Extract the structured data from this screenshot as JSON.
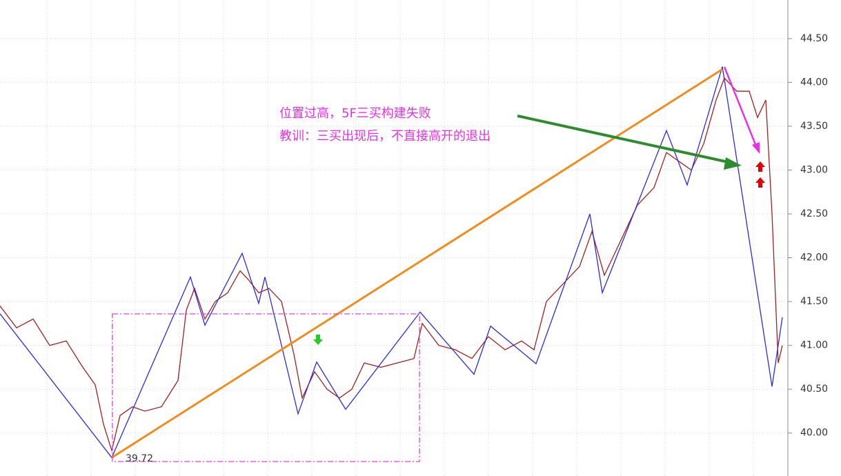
{
  "chart_data": {
    "type": "line",
    "annotations": [
      "位置过高，5F三买构建失败",
      "教训：三买出现后，不直接高开的退出"
    ],
    "low_value": 39.72,
    "xlim": [
      0,
      380
    ],
    "ylim": [
      39.51,
      44.94
    ],
    "yticks": [
      {
        "value": 40,
        "label": "40.00"
      },
      {
        "value": 40.5,
        "label": "40.50"
      },
      {
        "value": 41,
        "label": "41.00"
      },
      {
        "value": 41.5,
        "label": "41.50"
      },
      {
        "value": 42,
        "label": "42.00"
      },
      {
        "value": 42.5,
        "label": "42.50"
      },
      {
        "value": 43,
        "label": "43.00"
      },
      {
        "value": 43.5,
        "label": "43.50"
      },
      {
        "value": 44,
        "label": "44.00"
      },
      {
        "value": 44.5,
        "label": "44.50"
      }
    ],
    "grid": true,
    "series": [
      {
        "color": "#a02020",
        "x": [
          0,
          8,
          16,
          24,
          32,
          40,
          46,
          50,
          54,
          58,
          64,
          70,
          78,
          86,
          90,
          94,
          99,
          104,
          110,
          116,
          120,
          125,
          130,
          136,
          142,
          146,
          152,
          158,
          164,
          170,
          176,
          184,
          192,
          200,
          204,
          212,
          220,
          228,
          236,
          244,
          252,
          258,
          264,
          272,
          280,
          286,
          292,
          300,
          308,
          316,
          322,
          328,
          334,
          340,
          346,
          350,
          356,
          362,
          366,
          370,
          373,
          376,
          378
        ],
        "values": [
          41.45,
          41.2,
          41.3,
          41.0,
          41.05,
          40.75,
          40.55,
          40.1,
          39.8,
          40.2,
          40.3,
          40.25,
          40.3,
          40.6,
          41.4,
          41.65,
          41.3,
          41.5,
          41.6,
          41.85,
          41.75,
          41.6,
          41.65,
          41.5,
          40.9,
          40.4,
          40.7,
          40.5,
          40.4,
          40.5,
          40.8,
          40.75,
          40.8,
          40.85,
          41.25,
          41.0,
          40.95,
          40.85,
          41.1,
          40.95,
          41.05,
          40.95,
          41.5,
          41.7,
          41.9,
          42.3,
          41.8,
          42.2,
          42.6,
          42.8,
          43.2,
          43.1,
          43.0,
          43.3,
          43.8,
          44.05,
          43.9,
          43.9,
          43.6,
          43.8,
          42.5,
          40.8,
          41.0
        ]
      },
      {
        "color": "#2a2ae0",
        "x": [
          0,
          54,
          92,
          99,
          117,
          125,
          128,
          144,
          153,
          167,
          203,
          229,
          237,
          259,
          285,
          291,
          322,
          332,
          349,
          373,
          378
        ],
        "values": [
          41.36,
          39.72,
          41.78,
          41.23,
          42.05,
          41.48,
          41.78,
          40.22,
          40.81,
          40.27,
          41.38,
          40.67,
          41.22,
          40.79,
          42.5,
          41.6,
          43.45,
          42.83,
          44.18,
          40.53,
          41.32
        ]
      },
      {
        "color": "#f08c1e",
        "x": [
          54,
          349
        ],
        "values": [
          39.72,
          44.15
        ]
      }
    ]
  }
}
